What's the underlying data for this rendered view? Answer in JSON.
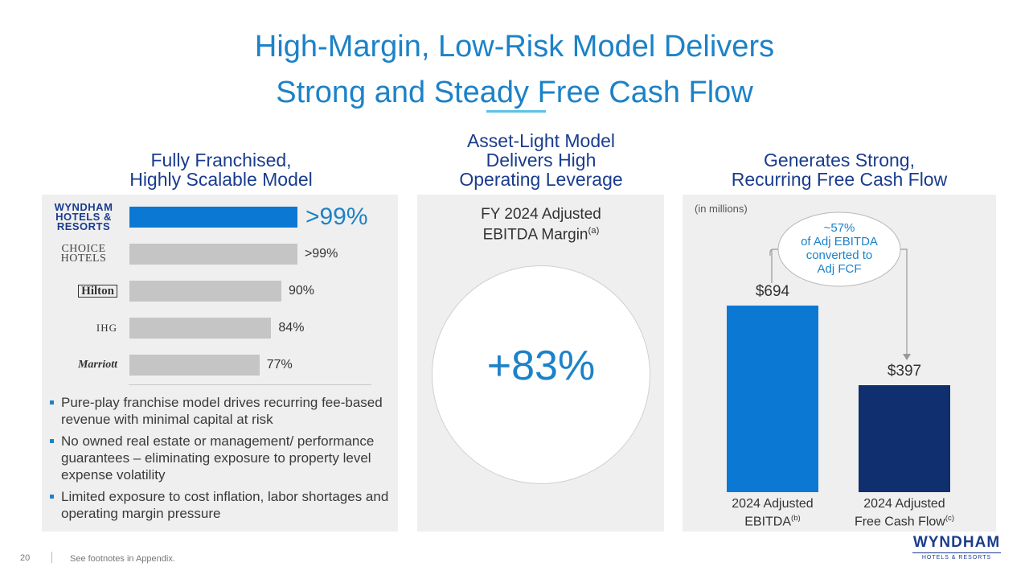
{
  "title": {
    "line1": "High-Margin, Low-Risk Model Delivers",
    "line2": "Strong and Steady Free Cash Flow"
  },
  "left": {
    "heading_line1": "Fully Franchised,",
    "heading_line2": "Highly Scalable Model",
    "bullets": [
      "Pure-play franchise model drives recurring fee-based revenue with minimal capital at risk",
      "No owned real estate or management/ performance guarantees – eliminating exposure to property level expense volatility",
      "Limited exposure to cost inflation, labor shortages and operating margin pressure"
    ]
  },
  "middle": {
    "heading_line1": "Asset-Light Model",
    "heading_line2": "Delivers High",
    "heading_line3": "Operating Leverage",
    "margin_title_line1": "FY 2024 Adjusted",
    "margin_title_line2": "EBITDA Margin",
    "margin_footnote": "(a)",
    "margin_value": "+83%"
  },
  "right": {
    "heading_line1": "Generates Strong,",
    "heading_line2": "Recurring Free Cash Flow",
    "units": "(in millions)",
    "callout_line1": "~57%",
    "callout_line2": "of Adj EBITDA",
    "callout_line3": "converted to",
    "callout_line4": "Adj FCF"
  },
  "footer": {
    "page_number": "20",
    "note": "See footnotes in Appendix."
  },
  "logo": {
    "main": "WYNDHAM",
    "sub": "HOTELS & RESORTS"
  },
  "chart_data": [
    {
      "type": "bar",
      "orientation": "horizontal",
      "title": "Fully Franchised, Highly Scalable Model",
      "categories": [
        "WYNDHAM HOTELS & RESORTS",
        "CHOICE HOTELS",
        "Hilton",
        "IHG",
        "Marriott"
      ],
      "values": [
        99.5,
        99.5,
        90,
        84,
        77
      ],
      "value_labels": [
        ">99%",
        ">99%",
        "90%",
        "84%",
        "77%"
      ],
      "xlim": [
        0,
        100
      ],
      "highlight_color": "#0b78d4",
      "other_color": "#c5c5c5"
    },
    {
      "type": "bar",
      "title": "Generates Strong, Recurring Free Cash Flow",
      "categories": [
        "2024 Adjusted EBITDA",
        "2024 Adjusted Free Cash Flow"
      ],
      "category_footnotes": [
        "(b)",
        "(c)"
      ],
      "values": [
        694,
        397
      ],
      "value_labels": [
        "$694",
        "$397"
      ],
      "ylabel": "(in millions)",
      "ylim": [
        0,
        694
      ],
      "colors": [
        "#0b78d4",
        "#0f2f6e"
      ]
    }
  ]
}
